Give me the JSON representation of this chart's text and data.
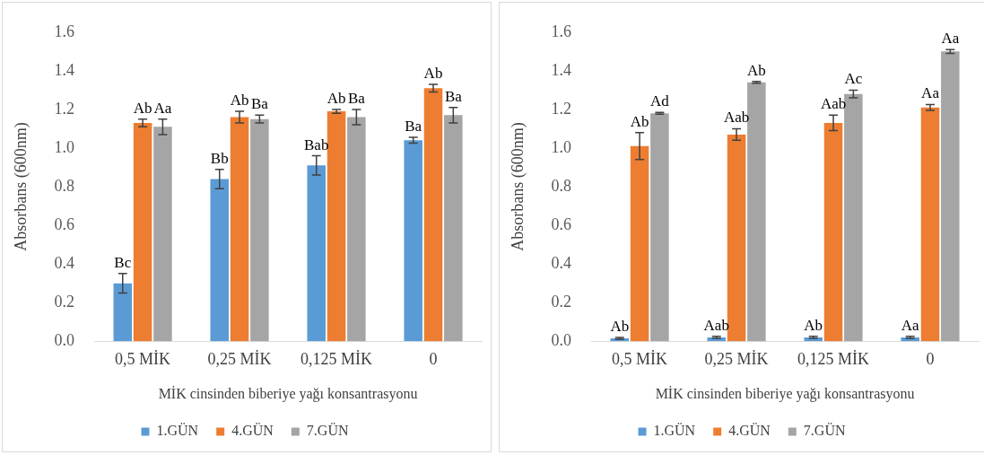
{
  "chart_data": [
    {
      "type": "bar",
      "xlabel": "MİK cinsinden biberiye yağı konsantrasyonu",
      "ylabel": "Absorbans (600nm)",
      "categories": [
        "0,5 MİK",
        "0,25 MİK",
        "0,125 MİK",
        "0"
      ],
      "ylim": [
        0,
        1.6
      ],
      "yticks": [
        {
          "value": 0,
          "label": "0.0"
        },
        {
          "value": 0.2,
          "label": "0.2"
        },
        {
          "value": 0.4,
          "label": "0.4"
        },
        {
          "value": 0.6,
          "label": "0.6"
        },
        {
          "value": 0.8,
          "label": "0.8"
        },
        {
          "value": 1,
          "label": "1.0"
        },
        {
          "value": 1.2,
          "label": "1.2"
        },
        {
          "value": 1.4,
          "label": "1.4"
        },
        {
          "value": 1.6,
          "label": "1.6"
        }
      ],
      "grid": false,
      "legend": "bottom",
      "series": [
        {
          "name": "1.GÜN",
          "color": "#5b9bd5",
          "values": [
            0.3,
            0.84,
            0.91,
            1.04
          ],
          "errors": [
            0.05,
            0.05,
            0.05,
            0.015
          ],
          "value_labels": [
            "Bc",
            "Bb",
            "Bab",
            "Ba"
          ]
        },
        {
          "name": "4.GÜN",
          "color": "#ed7d31",
          "values": [
            1.13,
            1.16,
            1.19,
            1.31
          ],
          "errors": [
            0.02,
            0.03,
            0.01,
            0.02
          ],
          "value_labels": [
            "Ab",
            "Ab",
            "Ab",
            "Ab"
          ]
        },
        {
          "name": "7.GÜN",
          "color": "#a5a5a5",
          "values": [
            1.11,
            1.15,
            1.16,
            1.17
          ],
          "errors": [
            0.04,
            0.02,
            0.04,
            0.04
          ],
          "value_labels": [
            "Aa",
            "Ba",
            "Ba",
            "Ba"
          ]
        }
      ]
    },
    {
      "type": "bar",
      "xlabel": "MİK cinsinden biberiye yağı konsantrasyonu",
      "ylabel": "Absorbans (600nm)",
      "categories": [
        "0,5 MİK",
        "0,25 MİK",
        "0,125 MİK",
        "0"
      ],
      "ylim": [
        0,
        1.6
      ],
      "yticks": [
        {
          "value": 0,
          "label": "0.0"
        },
        {
          "value": 0.2,
          "label": "0.2"
        },
        {
          "value": 0.4,
          "label": "0.4"
        },
        {
          "value": 0.6,
          "label": "0.6"
        },
        {
          "value": 0.8,
          "label": "0.8"
        },
        {
          "value": 1,
          "label": "1.0"
        },
        {
          "value": 1.2,
          "label": "1.2"
        },
        {
          "value": 1.4,
          "label": "1.4"
        },
        {
          "value": 1.6,
          "label": "1.6"
        }
      ],
      "grid": false,
      "legend": "bottom",
      "series": [
        {
          "name": "1.GÜN",
          "color": "#5b9bd5",
          "values": [
            0.015,
            0.02,
            0.02,
            0.02
          ],
          "errors": [
            0.005,
            0.005,
            0.005,
            0.005
          ],
          "value_labels": [
            "Ab",
            "Aab",
            "Ab",
            "Aa"
          ]
        },
        {
          "name": "4.GÜN",
          "color": "#ed7d31",
          "values": [
            1.01,
            1.07,
            1.13,
            1.21
          ],
          "errors": [
            0.07,
            0.03,
            0.04,
            0.015
          ],
          "value_labels": [
            "Ab",
            "Aab",
            "Aab",
            "Aa"
          ]
        },
        {
          "name": "7.GÜN",
          "color": "#a5a5a5",
          "values": [
            1.18,
            1.34,
            1.28,
            1.5
          ],
          "errors": [
            0.005,
            0.005,
            0.02,
            0.01
          ],
          "value_labels": [
            "Ad",
            "Ab",
            "Ac",
            "Aa"
          ]
        }
      ]
    }
  ]
}
